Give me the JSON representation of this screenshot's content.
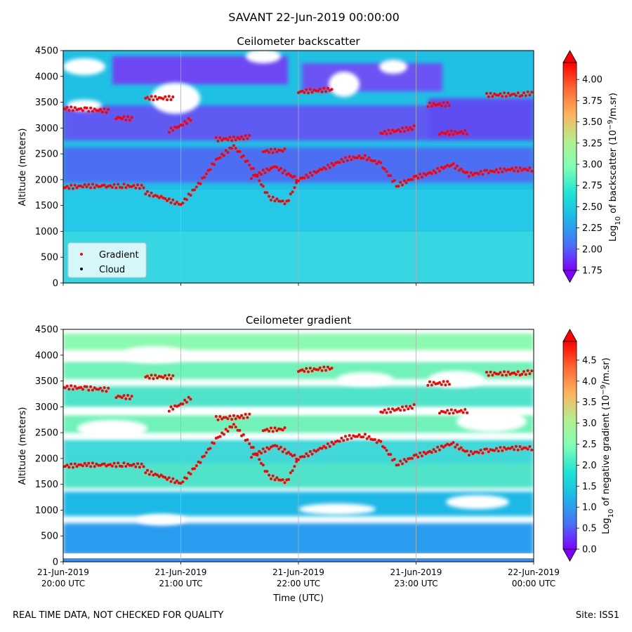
{
  "title": "SAVANT 22-Jun-2019 00:00:00",
  "footer": {
    "left": "REAL TIME DATA, NOT CHECKED FOR QUALITY",
    "right": "Site: ISS1"
  },
  "chart_data": [
    {
      "type": "heatmap",
      "title": "Ceilometer backscatter",
      "ylabel": "Altitude (meters)",
      "ylim": [
        0,
        4500
      ],
      "yticks": [
        0,
        500,
        1000,
        1500,
        2000,
        2500,
        3000,
        3500,
        4000,
        4500
      ],
      "xlim": [
        "21-Jun-2019 20:00",
        "22-Jun-2019 00:00"
      ],
      "grid": "vertical only",
      "colorbar": {
        "label": "Log10 of backscatter (10^-9/m.sr)",
        "label_main": "Log",
        "label_sub": "10",
        "label_rest": " of backscatter (10",
        "label_sup": "−9",
        "label_end": "/m.sr)",
        "colormap": "rainbow",
        "range": [
          1.75,
          4.2
        ],
        "ticks": [
          "1.75",
          "2.00",
          "2.25",
          "2.50",
          "2.75",
          "3.00",
          "3.25",
          "3.50",
          "3.75",
          "4.00"
        ],
        "tick_values": [
          1.75,
          2.0,
          2.25,
          2.5,
          2.75,
          3.0,
          3.25,
          3.5,
          3.75,
          4.0
        ],
        "extend": "both"
      },
      "legend": {
        "placement": "lower-left",
        "entries": [
          {
            "label": "Gradient",
            "color": "#ff0000"
          },
          {
            "label": "Cloud",
            "color": "#000000"
          }
        ]
      }
    },
    {
      "type": "heatmap",
      "title": "Ceilometer gradient",
      "xlabel": "Time (UTC)",
      "ylabel": "Altitude (meters)",
      "ylim": [
        0,
        4500
      ],
      "yticks": [
        0,
        500,
        1000,
        1500,
        2000,
        2500,
        3000,
        3500,
        4000,
        4500
      ],
      "xticks": [
        {
          "value": 0,
          "line1": "21-Jun-2019",
          "line2": "20:00 UTC"
        },
        {
          "value": 1,
          "line1": "21-Jun-2019",
          "line2": "21:00 UTC"
        },
        {
          "value": 2,
          "line1": "21-Jun-2019",
          "line2": "22:00 UTC"
        },
        {
          "value": 3,
          "line1": "21-Jun-2019",
          "line2": "23:00 UTC"
        },
        {
          "value": 4,
          "line1": "22-Jun-2019",
          "line2": "00:00 UTC"
        }
      ],
      "grid": "vertical only",
      "colorbar": {
        "label": "Log10 of negative gradient (10^-9/m.sr)",
        "label_main": "Log",
        "label_sub": "10",
        "label_rest": " of negative gradient (10",
        "label_sup": "−9",
        "label_end": "/m.sr)",
        "colormap": "rainbow",
        "range": [
          0,
          4.95
        ],
        "ticks": [
          "0.0",
          "0.5",
          "1.0",
          "1.5",
          "2.0",
          "2.5",
          "3.0",
          "3.5",
          "4.0",
          "4.5"
        ],
        "tick_values": [
          0,
          0.5,
          1.0,
          1.5,
          2.0,
          2.5,
          3.0,
          3.5,
          4.0,
          4.5
        ],
        "extend": "both"
      }
    }
  ],
  "series_gradient": {
    "name": "Gradient",
    "x_unit": "hours after 21-Jun-2019 20:00 UTC",
    "segments": [
      {
        "x": [
          0.0,
          0.2,
          0.35,
          0.5,
          0.7
        ],
        "y": [
          1850,
          1880,
          1870,
          1880,
          1860
        ]
      },
      {
        "x": [
          0.7,
          0.85,
          1.0,
          1.15,
          1.3,
          1.45,
          1.6,
          1.75,
          1.9,
          2.0
        ],
        "y": [
          1750,
          1640,
          1520,
          1900,
          2380,
          2650,
          2250,
          1650,
          1550,
          2000
        ]
      },
      {
        "x": [
          1.6,
          1.8,
          2.0,
          2.2,
          2.4,
          2.55,
          2.7,
          2.85
        ],
        "y": [
          2050,
          2250,
          2000,
          2200,
          2400,
          2450,
          2300,
          1850
        ]
      },
      {
        "x": [
          2.85,
          3.0,
          3.15,
          3.3,
          3.45
        ],
        "y": [
          1900,
          2050,
          2150,
          2300,
          2100
        ]
      },
      {
        "x": [
          3.45,
          3.6,
          3.8,
          4.0
        ],
        "y": [
          2100,
          2150,
          2200,
          2200
        ]
      },
      {
        "x": [
          0.0,
          0.2,
          0.4
        ],
        "y": [
          3380,
          3360,
          3330
        ]
      },
      {
        "x": [
          0.45,
          0.6
        ],
        "y": [
          3200,
          3180
        ]
      },
      {
        "x": [
          0.9,
          1.0,
          1.1
        ],
        "y": [
          2950,
          3050,
          3200
        ]
      },
      {
        "x": [
          0.7,
          0.95
        ],
        "y": [
          3580,
          3580
        ]
      },
      {
        "x": [
          1.3,
          1.5,
          1.6
        ],
        "y": [
          2780,
          2800,
          2840
        ]
      },
      {
        "x": [
          1.7,
          1.9
        ],
        "y": [
          2550,
          2570
        ]
      },
      {
        "x": [
          2.0,
          2.3
        ],
        "y": [
          3700,
          3750
        ]
      },
      {
        "x": [
          2.7,
          2.95,
          3.0
        ],
        "y": [
          2900,
          2990,
          3020
        ]
      },
      {
        "x": [
          3.1,
          3.3
        ],
        "y": [
          3450,
          3460
        ]
      },
      {
        "x": [
          3.2,
          3.45
        ],
        "y": [
          2900,
          2920
        ]
      },
      {
        "x": [
          3.6,
          3.9,
          4.0
        ],
        "y": [
          3640,
          3650,
          3680
        ]
      }
    ]
  }
}
